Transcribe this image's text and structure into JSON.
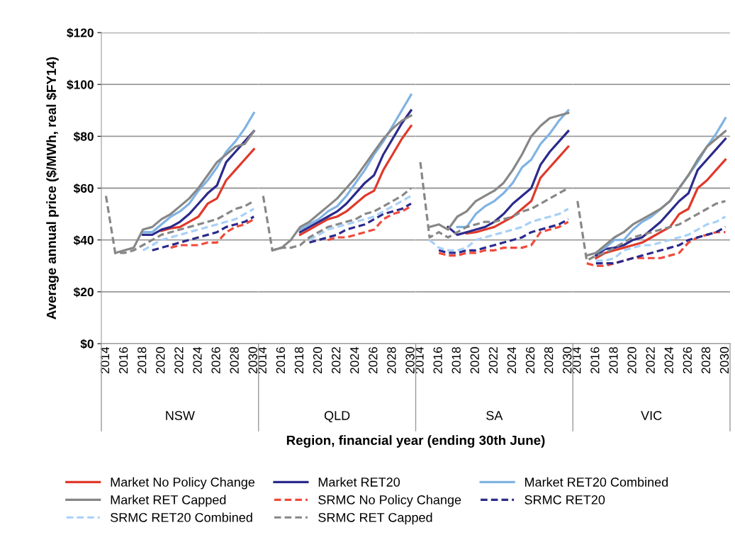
{
  "chart_data": [
    {
      "type": "line",
      "xlabel": "NSW",
      "ylabel": "Average annual price ($/MWh, real $FY14)",
      "annotations": [
        "Region, financial year (ending 30th June)"
      ],
      "legend": "bottom",
      "grid": "y",
      "ylim": [
        0,
        120
      ],
      "yticks": [
        {
          "value": 0,
          "label": "$0"
        },
        {
          "value": 20,
          "label": "$20"
        },
        {
          "value": 40,
          "label": "$40"
        },
        {
          "value": 60,
          "label": "$60"
        },
        {
          "value": 80,
          "label": "$80"
        },
        {
          "value": 100,
          "label": "$100"
        },
        {
          "value": 120,
          "label": "$120"
        }
      ],
      "categories": [
        "2014",
        null,
        "2016",
        null,
        "2018",
        null,
        "2020",
        null,
        "2022",
        null,
        "2024",
        null,
        "2026",
        null,
        "2028",
        null,
        "2030"
      ],
      "series": [
        {
          "name": "Market No Policy Change",
          "color": "#e0392b",
          "line_style": "solid",
          "values": [
            null,
            null,
            null,
            null,
            null,
            null,
            43.5,
            44.5,
            45,
            47,
            49,
            54,
            56,
            63,
            67,
            71,
            75
          ]
        },
        {
          "name": "Market RET20",
          "color": "#2b2a8c",
          "line_style": "solid",
          "values": [
            null,
            null,
            null,
            null,
            42,
            42,
            44,
            45,
            47,
            50,
            54,
            58,
            61,
            70,
            74,
            78,
            82
          ]
        },
        {
          "name": "Market RET20 Combined",
          "color": "#7fb3e3",
          "line_style": "solid",
          "values": [
            null,
            null,
            null,
            null,
            43,
            43,
            46,
            49,
            51,
            54,
            59,
            63,
            68,
            74,
            78,
            83,
            89
          ]
        },
        {
          "name": "Market RET Capped",
          "color": "#878787",
          "line_style": "solid",
          "values": [
            null,
            35,
            36,
            37,
            44,
            45,
            48,
            50,
            53,
            56,
            60,
            65,
            70,
            73,
            76,
            77,
            82
          ]
        },
        {
          "name": "SRMC No Policy Change",
          "color": "#f04a3a",
          "line_style": "dashed",
          "values": [
            null,
            null,
            null,
            null,
            null,
            null,
            null,
            37,
            38,
            38,
            38,
            39,
            39,
            43,
            45,
            46,
            48
          ]
        },
        {
          "name": "SRMC RET20",
          "color": "#2b2a8c",
          "line_style": "dashed",
          "values": [
            null,
            null,
            null,
            null,
            null,
            36,
            37,
            38,
            39,
            40,
            41,
            42,
            43,
            45,
            46,
            47,
            49
          ]
        },
        {
          "name": "SRMC RET20 Combined",
          "color": "#a8d0f8",
          "line_style": "dashed",
          "values": [
            null,
            null,
            null,
            null,
            36,
            38,
            40,
            41,
            42,
            43,
            44,
            45,
            46,
            47,
            48,
            50,
            52
          ]
        },
        {
          "name": "SRMC RET Capped",
          "color": "#878787",
          "line_style": "dashed",
          "values": [
            57,
            35,
            35,
            36,
            38,
            40,
            42,
            43,
            44,
            45,
            46,
            47,
            48,
            50,
            52,
            53,
            55
          ]
        }
      ]
    },
    {
      "type": "line",
      "xlabel": "QLD",
      "tick_labels": "x",
      "grid": "y",
      "ylim": [
        0,
        120
      ],
      "categories": [
        "2014",
        null,
        "2016",
        null,
        "2018",
        null,
        "2020",
        null,
        "2022",
        null,
        "2024",
        null,
        "2026",
        null,
        "2028",
        null,
        "2030"
      ],
      "series": [
        {
          "color": "#e0392b",
          "line_style": "solid",
          "values": [
            null,
            null,
            null,
            null,
            42,
            44,
            46,
            48,
            49,
            51,
            54,
            57,
            59,
            67,
            73,
            79,
            84
          ]
        },
        {
          "color": "#2b2a8c",
          "line_style": "solid",
          "values": [
            null,
            null,
            null,
            null,
            43,
            45,
            47,
            49,
            51,
            54,
            58,
            62,
            65,
            73,
            79,
            85,
            90
          ]
        },
        {
          "color": "#7fb3e3",
          "line_style": "solid",
          "values": [
            null,
            null,
            null,
            null,
            44,
            46,
            48,
            51,
            53,
            57,
            62,
            67,
            73,
            78,
            84,
            90,
            96
          ]
        },
        {
          "color": "#878787",
          "line_style": "solid",
          "values": [
            null,
            36,
            37,
            40,
            45,
            47,
            50,
            53,
            56,
            60,
            64,
            69,
            74,
            79,
            83,
            86,
            88
          ]
        },
        {
          "color": "#f04a3a",
          "line_style": "dashed",
          "values": [
            null,
            null,
            null,
            null,
            null,
            null,
            null,
            40,
            41,
            41,
            42,
            43,
            44,
            48,
            50,
            51,
            53
          ]
        },
        {
          "color": "#2b2a8c",
          "line_style": "dashed",
          "values": [
            null,
            null,
            null,
            null,
            null,
            39,
            40,
            41,
            42,
            44,
            45,
            46,
            48,
            50,
            51,
            52,
            54
          ]
        },
        {
          "color": "#a8d0f8",
          "line_style": "dashed",
          "values": [
            null,
            null,
            null,
            null,
            null,
            40,
            42,
            44,
            45,
            46,
            47,
            48,
            49,
            51,
            53,
            55,
            57
          ]
        },
        {
          "color": "#878787",
          "line_style": "dashed",
          "values": [
            57,
            36,
            37,
            37,
            38,
            41,
            43,
            45,
            46,
            47,
            48,
            50,
            51,
            53,
            55,
            57,
            60
          ]
        }
      ]
    },
    {
      "type": "line",
      "xlabel": "SA",
      "tick_labels": "x",
      "grid": "y",
      "ylim": [
        0,
        120
      ],
      "categories": [
        "2014",
        null,
        "2016",
        null,
        "2018",
        null,
        "2020",
        null,
        "2022",
        null,
        "2024",
        null,
        "2026",
        null,
        "2028",
        null,
        "2030"
      ],
      "series": [
        {
          "color": "#e0392b",
          "line_style": "solid",
          "values": [
            null,
            null,
            null,
            null,
            null,
            42.5,
            43,
            44,
            45,
            47,
            49,
            52,
            55,
            64,
            68,
            72,
            76
          ]
        },
        {
          "color": "#2b2a8c",
          "line_style": "solid",
          "values": [
            null,
            null,
            null,
            45,
            42,
            43,
            44,
            45,
            47,
            50,
            54,
            57,
            60,
            69,
            74,
            78,
            82
          ]
        },
        {
          "color": "#7fb3e3",
          "line_style": "solid",
          "values": [
            null,
            null,
            null,
            null,
            45,
            45,
            50,
            53,
            55,
            58,
            62,
            68,
            71,
            77,
            81,
            86,
            90
          ]
        },
        {
          "color": "#878787",
          "line_style": "solid",
          "values": [
            null,
            45,
            46,
            44,
            49,
            51,
            55,
            57,
            59,
            62,
            67,
            73,
            80,
            84,
            87,
            88,
            89
          ]
        },
        {
          "color": "#f04a3a",
          "line_style": "dashed",
          "values": [
            null,
            null,
            35,
            34,
            34,
            35,
            35,
            36,
            36,
            37,
            37,
            37,
            38,
            43,
            44,
            45,
            47
          ]
        },
        {
          "color": "#2b2a8c",
          "line_style": "dashed",
          "values": [
            null,
            null,
            36,
            35,
            35,
            36,
            36,
            37,
            38,
            39,
            40,
            41,
            43,
            44,
            45,
            46,
            48
          ]
        },
        {
          "color": "#a8d0f8",
          "line_style": "dashed",
          "values": [
            null,
            40,
            37,
            36,
            36,
            37,
            40,
            41,
            42,
            43,
            44,
            45,
            47,
            48,
            49,
            50,
            52
          ]
        },
        {
          "color": "#878787",
          "line_style": "dashed",
          "values": [
            70,
            41,
            43,
            41,
            43,
            45,
            46,
            47,
            47,
            48,
            49,
            51,
            52,
            54,
            56,
            58,
            60
          ]
        }
      ]
    },
    {
      "type": "line",
      "xlabel": "VIC",
      "tick_labels": "x",
      "grid": "y",
      "ylim": [
        0,
        120
      ],
      "categories": [
        "2014",
        null,
        "2016",
        null,
        "2018",
        null,
        "2020",
        null,
        "2022",
        null,
        "2024",
        null,
        "2026",
        null,
        "2028",
        null,
        "2030"
      ],
      "series": [
        {
          "color": "#e0392b",
          "line_style": "solid",
          "values": [
            null,
            null,
            33,
            35,
            36,
            37,
            38,
            39,
            41,
            43,
            45,
            50,
            52,
            60,
            63,
            67,
            71
          ]
        },
        {
          "color": "#2b2a8c",
          "line_style": "solid",
          "values": [
            null,
            null,
            34,
            36.5,
            37,
            38,
            40,
            41,
            44,
            47,
            51,
            55,
            58,
            67,
            71,
            75,
            79
          ]
        },
        {
          "color": "#7fb3e3",
          "line_style": "solid",
          "values": [
            null,
            null,
            35,
            37,
            40,
            40,
            44,
            47,
            49,
            52,
            55,
            60,
            65,
            70,
            76,
            81,
            87
          ]
        },
        {
          "color": "#878787",
          "line_style": "solid",
          "values": [
            null,
            34,
            35,
            38,
            41,
            43,
            46,
            48,
            50,
            52,
            55,
            60,
            65,
            71,
            76,
            79,
            82
          ]
        },
        {
          "color": "#f04a3a",
          "line_style": "dashed",
          "values": [
            null,
            31,
            30,
            30,
            31,
            32,
            33,
            33,
            33,
            33,
            34,
            35,
            39,
            41,
            42,
            43,
            43
          ]
        },
        {
          "color": "#2b2a8c",
          "line_style": "dashed",
          "values": [
            null,
            null,
            31,
            31,
            31,
            32,
            33,
            34,
            35,
            36,
            37,
            38,
            40,
            41,
            42,
            43,
            45
          ]
        },
        {
          "color": "#a8d0f8",
          "line_style": "dashed",
          "values": [
            null,
            null,
            32,
            32,
            33,
            36,
            37,
            38,
            38,
            39,
            40,
            41,
            42,
            44,
            46,
            47,
            49
          ]
        },
        {
          "color": "#878787",
          "line_style": "dashed",
          "values": [
            55,
            32,
            34,
            35,
            37,
            39,
            41,
            42,
            43,
            44,
            45,
            46,
            48,
            50,
            52,
            54,
            55
          ]
        }
      ]
    }
  ]
}
